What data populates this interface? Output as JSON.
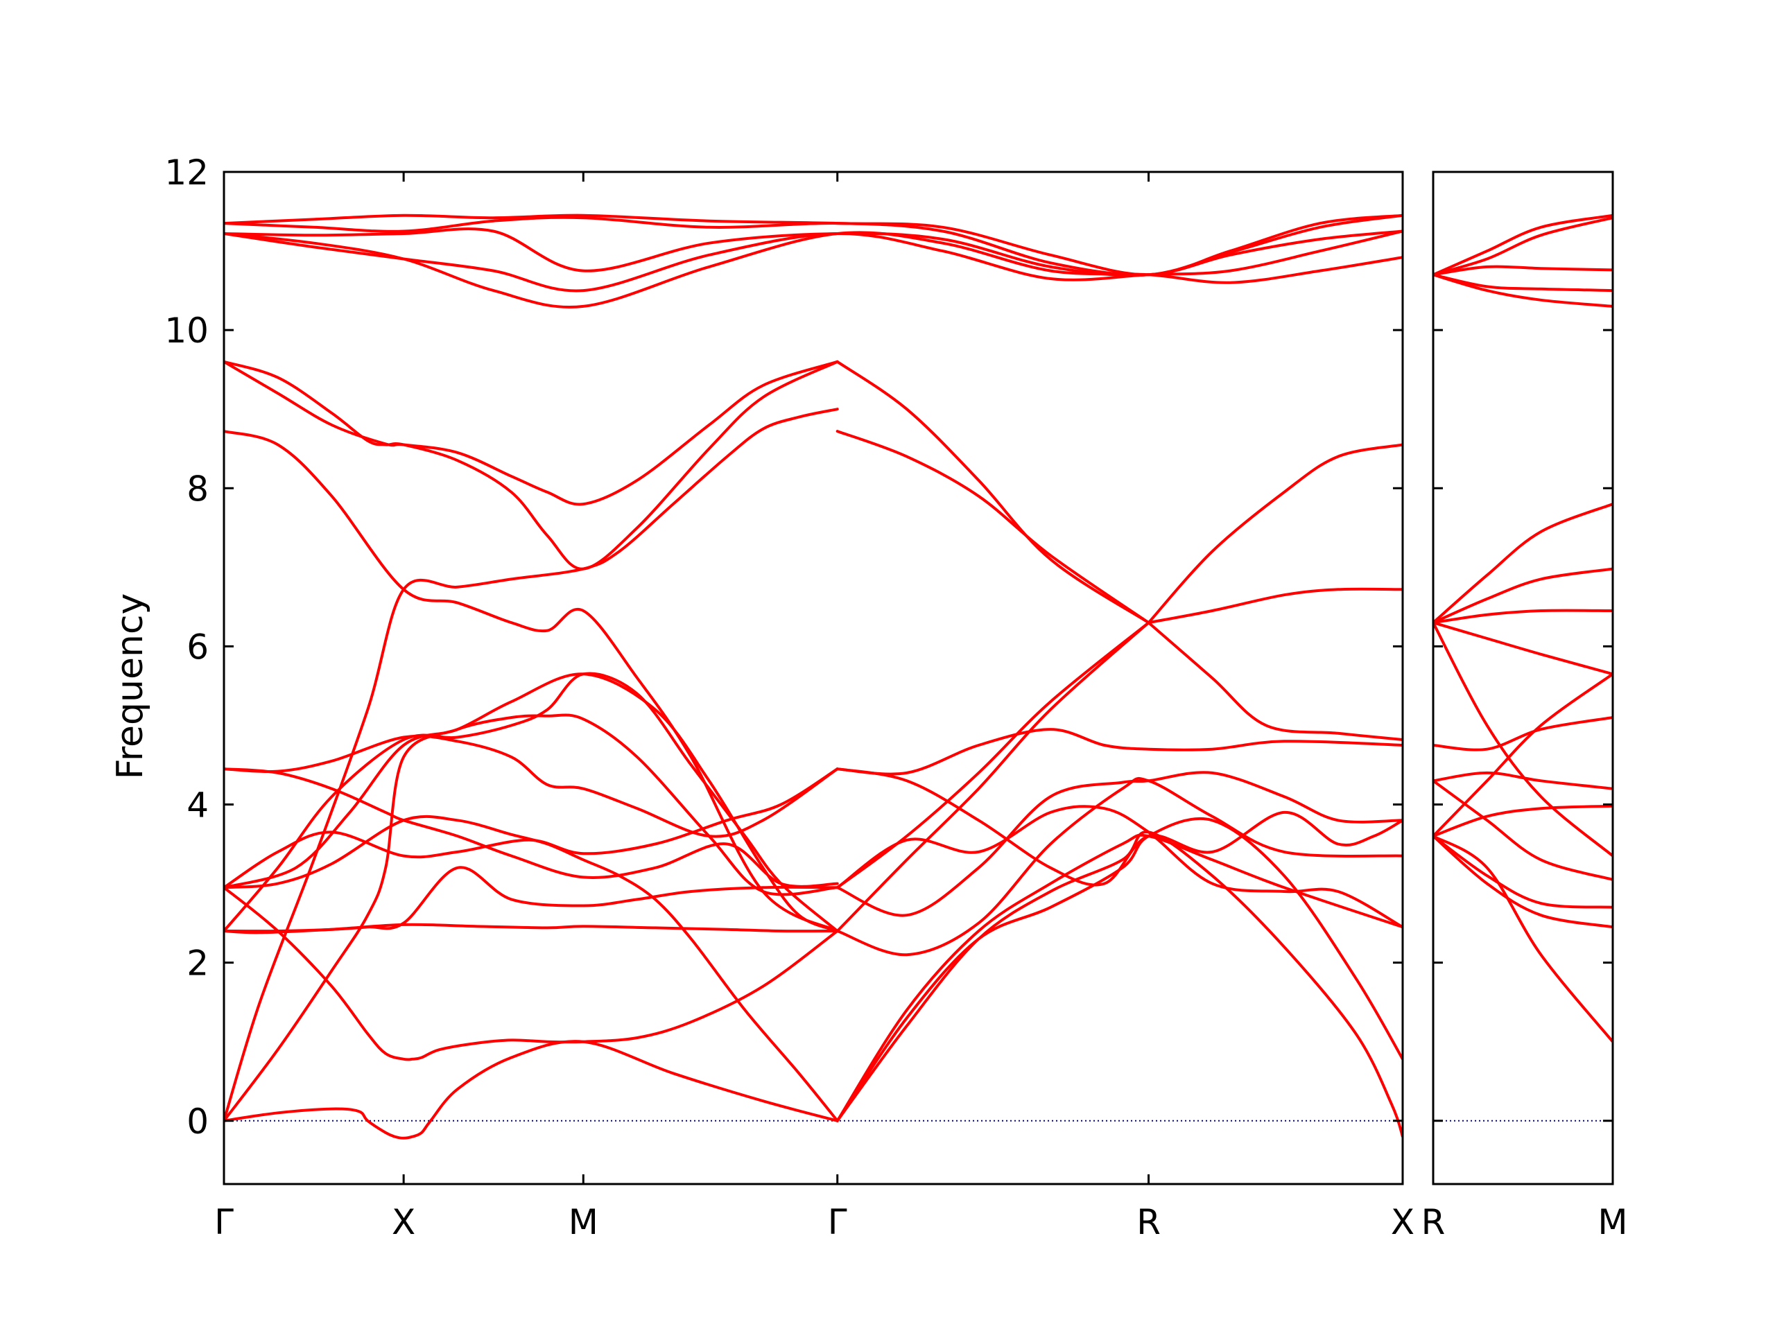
{
  "chart_data": {
    "type": "line",
    "title": "",
    "ylabel": "Frequency",
    "xlabel": "",
    "ylim": [
      -0.8,
      12
    ],
    "yticks": [
      0,
      2,
      4,
      6,
      8,
      10,
      12
    ],
    "grid": false,
    "line_color": "#ff0000",
    "zero_line_color": "#00008b",
    "panels": [
      {
        "id": "main",
        "segments": [
          "Γ-X",
          "X-M",
          "M-Γ",
          "Γ-R",
          "R-X"
        ],
        "tick_labels": [
          "Γ",
          "X",
          "M",
          "Γ",
          "R",
          "X"
        ],
        "tick_positions": [
          0,
          1,
          2,
          3.414,
          5.146,
          6.56
        ],
        "xlim": [
          0,
          6.56
        ]
      },
      {
        "id": "inset",
        "segments": [
          "R-M"
        ],
        "tick_labels": [
          "R",
          "M"
        ],
        "tick_positions": [
          0,
          1
        ],
        "xlim": [
          0,
          1
        ]
      }
    ],
    "series": [
      {
        "panel": 0,
        "x": [
          0,
          0.3,
          0.6,
          0.75,
          0.8,
          0.9,
          0.95,
          1.0,
          1.05,
          1.1,
          1.15,
          1.3,
          1.6,
          2.0,
          2.5,
          3.0,
          3.414
        ],
        "y": [
          0.0,
          0.1,
          0.15,
          0.12,
          0.0,
          -0.15,
          -0.2,
          -0.22,
          -0.2,
          -0.15,
          0.0,
          0.4,
          0.8,
          1.0,
          0.6,
          0.25,
          0.0
        ]
      },
      {
        "panel": 0,
        "x": [
          0,
          0.3,
          0.6,
          0.8,
          0.9,
          1.0,
          1.05,
          1.1,
          1.2,
          1.4,
          1.6,
          1.8,
          2.0,
          2.3,
          2.6,
          3.0,
          3.414
        ],
        "y": [
          2.95,
          2.4,
          1.7,
          1.1,
          0.85,
          0.78,
          0.78,
          0.8,
          0.9,
          0.98,
          1.02,
          1.0,
          1.0,
          1.05,
          1.25,
          1.7,
          2.4
        ]
      },
      {
        "panel": 0,
        "x": [
          0,
          0.2,
          0.5,
          0.8,
          1.0,
          1.3,
          1.6,
          2.0,
          2.2,
          2.5,
          2.8,
          3.0,
          3.2,
          3.414
        ],
        "y": [
          0.0,
          1.5,
          3.3,
          5.2,
          6.72,
          6.75,
          6.85,
          6.98,
          7.2,
          7.8,
          8.4,
          8.75,
          8.9,
          9.0
        ]
      },
      {
        "panel": 0,
        "x": [
          0,
          0.3,
          0.6,
          0.8,
          0.9,
          1.0,
          1.3,
          1.6,
          1.8,
          2.0,
          2.3,
          2.7,
          3.0,
          3.414
        ],
        "y": [
          0.0,
          0.9,
          1.9,
          2.6,
          3.2,
          4.6,
          4.95,
          5.1,
          5.12,
          5.08,
          4.6,
          3.6,
          2.9,
          2.95
        ]
      },
      {
        "panel": 0,
        "x": [
          0,
          0.2,
          0.6,
          1.0,
          1.4,
          1.8,
          2.0,
          2.4,
          2.8,
          3.1,
          3.414
        ],
        "y": [
          2.4,
          2.38,
          2.42,
          2.48,
          2.46,
          2.44,
          2.46,
          2.44,
          2.42,
          2.4,
          2.4
        ]
      },
      {
        "panel": 0,
        "x": [
          0,
          0.3,
          0.6,
          1.0,
          1.3,
          1.6,
          1.8,
          2.0,
          2.2,
          2.4,
          2.6,
          2.9,
          3.2,
          3.414
        ],
        "y": [
          2.95,
          3.0,
          3.25,
          3.8,
          3.8,
          3.62,
          3.5,
          3.3,
          3.1,
          2.8,
          2.3,
          1.4,
          0.6,
          0.0
        ]
      },
      {
        "panel": 0,
        "x": [
          0,
          0.3,
          0.6,
          0.9,
          1.0,
          1.3,
          1.6,
          2.0,
          2.4,
          2.8,
          3.1,
          3.414
        ],
        "y": [
          4.45,
          4.4,
          4.2,
          3.9,
          3.8,
          3.6,
          3.35,
          3.08,
          3.2,
          3.5,
          3.0,
          3.0
        ]
      },
      {
        "panel": 0,
        "x": [
          0,
          0.3,
          0.6,
          1.0,
          1.3,
          1.6,
          1.8,
          2.0,
          2.3,
          2.7,
          3.0,
          3.414
        ],
        "y": [
          4.45,
          4.42,
          4.55,
          4.85,
          4.8,
          4.6,
          4.25,
          4.2,
          3.95,
          3.6,
          3.8,
          4.45
        ]
      },
      {
        "panel": 0,
        "x": [
          0,
          0.3,
          0.6,
          1.0,
          1.3,
          1.7,
          2.0,
          2.4,
          2.8,
          3.1,
          3.414
        ],
        "y": [
          2.95,
          3.4,
          3.65,
          3.35,
          3.4,
          3.55,
          3.38,
          3.5,
          3.8,
          4.0,
          4.45
        ]
      },
      {
        "panel": 0,
        "x": [
          0,
          0.3,
          0.6,
          0.8,
          1.0,
          1.3,
          1.6,
          2.0,
          2.3,
          2.6,
          3.0,
          3.414
        ],
        "y": [
          2.4,
          2.4,
          2.42,
          2.45,
          2.5,
          3.2,
          2.8,
          2.72,
          2.8,
          2.9,
          2.95,
          2.95
        ]
      },
      {
        "panel": 0,
        "x": [
          0,
          0.4,
          0.7,
          1.0,
          1.3,
          1.6,
          2.0,
          2.4,
          2.7,
          3.0,
          3.2,
          3.414
        ],
        "y": [
          2.95,
          3.2,
          3.9,
          4.75,
          4.95,
          5.3,
          5.65,
          5.2,
          4.3,
          3.2,
          2.6,
          2.4
        ]
      },
      {
        "panel": 0,
        "x": [
          0,
          0.3,
          0.6,
          1.0,
          1.3,
          1.6,
          1.8,
          2.0,
          2.3,
          2.6,
          2.9,
          3.1,
          3.414
        ],
        "y": [
          2.4,
          3.2,
          4.1,
          4.82,
          4.85,
          5.0,
          5.2,
          5.65,
          5.4,
          4.5,
          3.6,
          3.0,
          2.4
        ]
      },
      {
        "panel": 0,
        "x": [
          0,
          0.3,
          0.6,
          1.0,
          1.3,
          1.6,
          1.8,
          2.0,
          2.3,
          2.6,
          3.0,
          3.414
        ],
        "y": [
          8.72,
          8.55,
          7.9,
          6.72,
          6.55,
          6.3,
          6.2,
          6.45,
          5.6,
          4.6,
          2.9,
          2.4
        ]
      },
      {
        "panel": 0,
        "x": [
          0,
          0.3,
          0.6,
          0.8,
          0.9,
          1.0,
          1.3,
          1.6,
          1.8,
          2.0,
          2.3,
          2.7,
          3.0,
          3.414
        ],
        "y": [
          9.6,
          9.4,
          8.95,
          8.6,
          8.55,
          8.55,
          8.35,
          7.95,
          7.4,
          6.98,
          7.5,
          8.5,
          9.15,
          9.6
        ]
      },
      {
        "panel": 0,
        "x": [
          0,
          0.3,
          0.6,
          0.9,
          1.0,
          1.3,
          1.6,
          1.8,
          2.0,
          2.3,
          2.7,
          3.0,
          3.414
        ],
        "y": [
          9.6,
          9.2,
          8.8,
          8.56,
          8.55,
          8.45,
          8.15,
          7.95,
          7.8,
          8.1,
          8.8,
          9.3,
          9.6
        ]
      },
      {
        "panel": 0,
        "x": [
          0,
          0.5,
          1.0,
          1.5,
          2.0,
          2.7,
          3.414,
          4.0,
          4.6,
          5.146,
          5.6,
          6.1,
          6.56
        ],
        "y": [
          11.35,
          11.4,
          11.45,
          11.42,
          11.45,
          11.38,
          11.35,
          11.3,
          10.95,
          10.7,
          11.0,
          11.35,
          11.45
        ]
      },
      {
        "panel": 0,
        "x": [
          0,
          0.5,
          1.0,
          1.5,
          2.0,
          2.7,
          3.414,
          4.0,
          4.6,
          5.146,
          5.6,
          6.1,
          6.56
        ],
        "y": [
          11.35,
          11.3,
          11.25,
          11.38,
          11.42,
          11.3,
          11.35,
          11.25,
          10.85,
          10.7,
          10.95,
          11.15,
          11.25
        ]
      },
      {
        "panel": 0,
        "x": [
          0,
          0.5,
          1.0,
          1.5,
          2.0,
          2.7,
          3.414,
          4.0,
          4.6,
          5.146,
          5.6,
          6.1,
          6.56
        ],
        "y": [
          11.22,
          11.1,
          10.9,
          10.5,
          10.3,
          10.8,
          11.22,
          11.1,
          10.75,
          10.7,
          10.6,
          10.75,
          10.92
        ]
      },
      {
        "panel": 0,
        "x": [
          0,
          0.5,
          1.0,
          1.5,
          2.0,
          2.7,
          3.414,
          4.0,
          4.6,
          5.146,
          5.6,
          6.1,
          6.56
        ],
        "y": [
          11.22,
          11.05,
          10.9,
          10.75,
          10.5,
          10.95,
          11.22,
          11.0,
          10.65,
          10.7,
          10.75,
          11.0,
          11.25
        ]
      },
      {
        "panel": 0,
        "x": [
          0,
          0.5,
          1.0,
          1.5,
          2.0,
          2.7,
          3.414,
          4.0,
          4.6,
          5.146,
          5.6,
          6.1,
          6.56
        ],
        "y": [
          11.22,
          11.2,
          11.22,
          11.25,
          10.75,
          11.1,
          11.22,
          11.15,
          10.8,
          10.7,
          10.98,
          11.3,
          11.45
        ]
      },
      {
        "panel": 0,
        "x": [
          3.414,
          3.8,
          4.2,
          4.6,
          5.146
        ],
        "y": [
          9.6,
          9.0,
          8.1,
          7.1,
          6.3
        ]
      },
      {
        "panel": 0,
        "x": [
          3.414,
          3.8,
          4.2,
          4.6,
          5.146
        ],
        "y": [
          8.72,
          8.4,
          7.9,
          7.15,
          6.3
        ]
      },
      {
        "panel": 0,
        "x": [
          3.414,
          3.8,
          4.2,
          4.6,
          5.146
        ],
        "y": [
          2.95,
          3.6,
          4.4,
          5.3,
          6.3
        ]
      },
      {
        "panel": 0,
        "x": [
          3.414,
          3.8,
          4.2,
          4.6,
          5.146
        ],
        "y": [
          2.4,
          3.3,
          4.2,
          5.2,
          6.3
        ]
      },
      {
        "panel": 0,
        "x": [
          5.146,
          5.5,
          5.9,
          6.2,
          6.56
        ],
        "y": [
          6.3,
          6.45,
          6.65,
          6.72,
          6.72
        ]
      },
      {
        "panel": 0,
        "x": [
          5.146,
          5.5,
          5.9,
          6.2,
          6.56
        ],
        "y": [
          6.3,
          7.2,
          7.95,
          8.4,
          8.55
        ]
      },
      {
        "panel": 0,
        "x": [
          5.146,
          5.5,
          5.8,
          6.2,
          6.56
        ],
        "y": [
          6.3,
          5.6,
          5.0,
          4.9,
          4.82
        ]
      },
      {
        "panel": 0,
        "x": [
          3.414,
          3.8,
          4.2,
          4.6,
          4.9,
          5.146,
          5.5,
          5.9,
          6.56
        ],
        "y": [
          4.45,
          4.4,
          4.75,
          4.95,
          4.75,
          4.7,
          4.7,
          4.8,
          4.75
        ]
      },
      {
        "panel": 0,
        "x": [
          3.414,
          3.8,
          4.2,
          4.6,
          4.9,
          5.146,
          5.5,
          5.9,
          6.2,
          6.4,
          6.56
        ],
        "y": [
          4.45,
          4.3,
          3.8,
          3.2,
          3.0,
          3.6,
          3.4,
          3.9,
          3.5,
          3.6,
          3.8
        ]
      },
      {
        "panel": 0,
        "x": [
          3.414,
          3.8,
          4.2,
          4.6,
          5.0,
          5.146,
          5.5,
          5.9,
          6.2,
          6.56
        ],
        "y": [
          2.95,
          2.6,
          3.2,
          4.1,
          4.28,
          4.3,
          4.4,
          4.1,
          3.8,
          3.8
        ]
      },
      {
        "panel": 0,
        "x": [
          3.414,
          3.8,
          4.2,
          4.6,
          5.0,
          5.146,
          5.5,
          5.9,
          6.56
        ],
        "y": [
          2.4,
          2.1,
          2.5,
          3.5,
          4.2,
          4.3,
          3.85,
          3.4,
          3.35
        ]
      },
      {
        "panel": 0,
        "x": [
          3.414,
          3.8,
          4.2,
          4.6,
          4.9,
          5.146,
          5.5,
          5.9,
          6.2,
          6.56
        ],
        "y": [
          2.95,
          3.55,
          3.4,
          3.9,
          3.95,
          3.65,
          3.0,
          2.9,
          2.9,
          2.45
        ]
      },
      {
        "panel": 0,
        "x": [
          3.414,
          3.8,
          4.2,
          4.6,
          5.0,
          5.146,
          5.5,
          5.9,
          6.3,
          6.5,
          6.56
        ],
        "y": [
          0.0,
          1.2,
          2.3,
          2.9,
          3.3,
          3.65,
          3.1,
          2.2,
          1.1,
          0.2,
          -0.2
        ]
      },
      {
        "panel": 0,
        "x": [
          3.414,
          3.8,
          4.2,
          4.6,
          5.0,
          5.146,
          5.5,
          5.9,
          6.3,
          6.56
        ],
        "y": [
          0.0,
          1.3,
          2.3,
          2.7,
          3.2,
          3.6,
          3.8,
          3.1,
          1.8,
          0.78
        ]
      },
      {
        "panel": 0,
        "x": [
          3.414,
          3.8,
          4.2,
          4.6,
          5.0,
          5.146,
          5.5,
          5.9,
          6.56
        ],
        "y": [
          0.0,
          1.4,
          2.4,
          3.0,
          3.5,
          3.6,
          3.3,
          2.95,
          2.45
        ]
      },
      {
        "panel": 1,
        "x": [
          0,
          0.3,
          0.6,
          1.0
        ],
        "y": [
          10.7,
          11.0,
          11.3,
          11.45
        ]
      },
      {
        "panel": 1,
        "x": [
          0,
          0.3,
          0.6,
          1.0
        ],
        "y": [
          10.7,
          10.9,
          11.2,
          11.42
        ]
      },
      {
        "panel": 1,
        "x": [
          0,
          0.3,
          0.6,
          1.0
        ],
        "y": [
          10.7,
          10.8,
          10.78,
          10.76
        ]
      },
      {
        "panel": 1,
        "x": [
          0,
          0.3,
          0.6,
          1.0
        ],
        "y": [
          10.7,
          10.55,
          10.52,
          10.5
        ]
      },
      {
        "panel": 1,
        "x": [
          0,
          0.3,
          0.6,
          1.0
        ],
        "y": [
          10.7,
          10.5,
          10.38,
          10.3
        ]
      },
      {
        "panel": 1,
        "x": [
          0,
          0.3,
          0.6,
          1.0
        ],
        "y": [
          6.3,
          6.9,
          7.45,
          7.8
        ]
      },
      {
        "panel": 1,
        "x": [
          0,
          0.3,
          0.6,
          1.0
        ],
        "y": [
          6.3,
          6.6,
          6.85,
          6.98
        ]
      },
      {
        "panel": 1,
        "x": [
          0,
          0.3,
          0.6,
          1.0
        ],
        "y": [
          6.3,
          6.4,
          6.45,
          6.45
        ]
      },
      {
        "panel": 1,
        "x": [
          0,
          0.3,
          0.6,
          1.0
        ],
        "y": [
          6.3,
          6.1,
          5.9,
          5.65
        ]
      },
      {
        "panel": 1,
        "x": [
          0,
          0.3,
          0.6,
          1.0
        ],
        "y": [
          6.3,
          5.0,
          4.1,
          3.35
        ]
      },
      {
        "panel": 1,
        "x": [
          0,
          0.3,
          0.6,
          1.0
        ],
        "y": [
          4.75,
          4.7,
          4.95,
          5.1
        ]
      },
      {
        "panel": 1,
        "x": [
          0,
          0.3,
          0.6,
          1.0
        ],
        "y": [
          4.3,
          4.4,
          4.3,
          4.2
        ]
      },
      {
        "panel": 1,
        "x": [
          0,
          0.3,
          0.6,
          1.0
        ],
        "y": [
          4.3,
          3.8,
          3.3,
          3.05
        ]
      },
      {
        "panel": 1,
        "x": [
          0,
          0.3,
          0.6,
          1.0
        ],
        "y": [
          3.6,
          4.3,
          5.0,
          5.65
        ]
      },
      {
        "panel": 1,
        "x": [
          0,
          0.3,
          0.6,
          1.0
        ],
        "y": [
          3.6,
          3.85,
          3.95,
          3.98
        ]
      },
      {
        "panel": 1,
        "x": [
          0,
          0.3,
          0.6,
          1.0
        ],
        "y": [
          3.6,
          3.1,
          2.75,
          2.7
        ]
      },
      {
        "panel": 1,
        "x": [
          0,
          0.3,
          0.6,
          1.0
        ],
        "y": [
          3.6,
          3.0,
          2.6,
          2.45
        ]
      },
      {
        "panel": 1,
        "x": [
          0,
          0.3,
          0.6,
          1.0
        ],
        "y": [
          3.6,
          3.2,
          2.1,
          1.0
        ]
      }
    ]
  }
}
